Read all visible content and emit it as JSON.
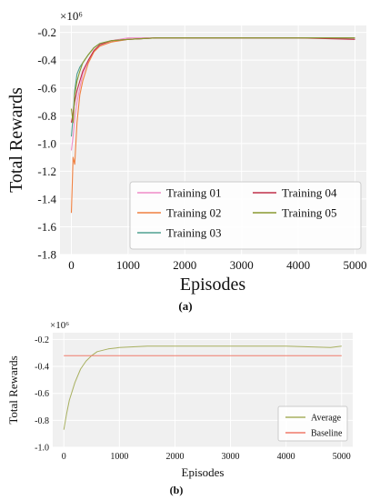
{
  "chart_data": [
    {
      "type": "line",
      "panel_label": "(a)",
      "ylabel": "Total Rewards",
      "xlabel": "Episodes",
      "exponent_label": "×10⁶",
      "x_ticks": [
        "0",
        "1000",
        "2000",
        "3000",
        "4000",
        "5000"
      ],
      "y_ticks": [
        "-0.2",
        "-0.4",
        "-0.6",
        "-0.8",
        "-1.0",
        "-1.2",
        "-1.4",
        "-1.6",
        "-1.8"
      ],
      "xlim": [
        -200,
        5200
      ],
      "ylim": [
        -1.8,
        -0.15
      ],
      "grid": true,
      "legend_position": "bottom-right",
      "series": [
        {
          "name": "Training 01",
          "color": "#f08cc8",
          "x": [
            0,
            30,
            60,
            100,
            150,
            200,
            300,
            400,
            500,
            700,
            1000,
            1500,
            2000,
            3000,
            4000,
            5000
          ],
          "y": [
            -1.05,
            -0.95,
            -0.82,
            -0.7,
            -0.6,
            -0.5,
            -0.4,
            -0.33,
            -0.29,
            -0.26,
            -0.24,
            -0.24,
            -0.24,
            -0.24,
            -0.24,
            -0.24
          ]
        },
        {
          "name": "Training 02",
          "color": "#f08040",
          "x": [
            0,
            30,
            60,
            100,
            150,
            200,
            300,
            400,
            500,
            700,
            1000,
            1500,
            2000,
            3000,
            4000,
            5000
          ],
          "y": [
            -1.5,
            -1.1,
            -1.15,
            -0.85,
            -0.65,
            -0.55,
            -0.42,
            -0.34,
            -0.3,
            -0.27,
            -0.25,
            -0.24,
            -0.24,
            -0.24,
            -0.24,
            -0.24
          ]
        },
        {
          "name": "Training 03",
          "color": "#4fa090",
          "x": [
            0,
            30,
            60,
            100,
            150,
            200,
            300,
            400,
            500,
            700,
            1000,
            1500,
            2000,
            3000,
            4000,
            5000
          ],
          "y": [
            -0.95,
            -0.8,
            -0.62,
            -0.5,
            -0.45,
            -0.42,
            -0.36,
            -0.31,
            -0.28,
            -0.26,
            -0.25,
            -0.24,
            -0.24,
            -0.24,
            -0.24,
            -0.24
          ]
        },
        {
          "name": "Training 04",
          "color": "#c0304a",
          "x": [
            0,
            30,
            60,
            100,
            150,
            200,
            300,
            400,
            500,
            700,
            1000,
            1500,
            2000,
            3000,
            4000,
            5000
          ],
          "y": [
            -0.85,
            -0.78,
            -0.7,
            -0.62,
            -0.55,
            -0.48,
            -0.4,
            -0.33,
            -0.29,
            -0.26,
            -0.25,
            -0.24,
            -0.24,
            -0.24,
            -0.24,
            -0.25
          ]
        },
        {
          "name": "Training 05",
          "color": "#8a9a30",
          "x": [
            0,
            30,
            60,
            100,
            150,
            200,
            300,
            400,
            500,
            700,
            1000,
            1500,
            2000,
            3000,
            4000,
            5000
          ],
          "y": [
            -0.75,
            -0.85,
            -0.65,
            -0.55,
            -0.48,
            -0.42,
            -0.36,
            -0.31,
            -0.28,
            -0.26,
            -0.25,
            -0.24,
            -0.24,
            -0.24,
            -0.24,
            -0.24
          ]
        }
      ]
    },
    {
      "type": "line",
      "panel_label": "(b)",
      "ylabel": "Total Rewards",
      "xlabel": "Episodes",
      "exponent_label": "×10⁶",
      "x_ticks": [
        "0",
        "1000",
        "2000",
        "3000",
        "4000",
        "5000"
      ],
      "y_ticks": [
        "-0.2",
        "-0.4",
        "-0.6",
        "-0.8",
        "-1.0"
      ],
      "xlim": [
        -200,
        5200
      ],
      "ylim": [
        -1.0,
        -0.15
      ],
      "grid": true,
      "legend_position": "bottom-right",
      "series": [
        {
          "name": "Average",
          "color": "#a8b060",
          "x": [
            0,
            50,
            100,
            200,
            300,
            400,
            500,
            600,
            800,
            1000,
            1500,
            2000,
            3000,
            4000,
            4800,
            5000
          ],
          "y": [
            -0.87,
            -0.75,
            -0.65,
            -0.52,
            -0.42,
            -0.36,
            -0.32,
            -0.29,
            -0.27,
            -0.26,
            -0.25,
            -0.25,
            -0.25,
            -0.25,
            -0.26,
            -0.25
          ]
        },
        {
          "name": "Baseline",
          "color": "#f07a6a",
          "x": [
            0,
            5000
          ],
          "y": [
            -0.32,
            -0.32
          ]
        }
      ]
    }
  ]
}
